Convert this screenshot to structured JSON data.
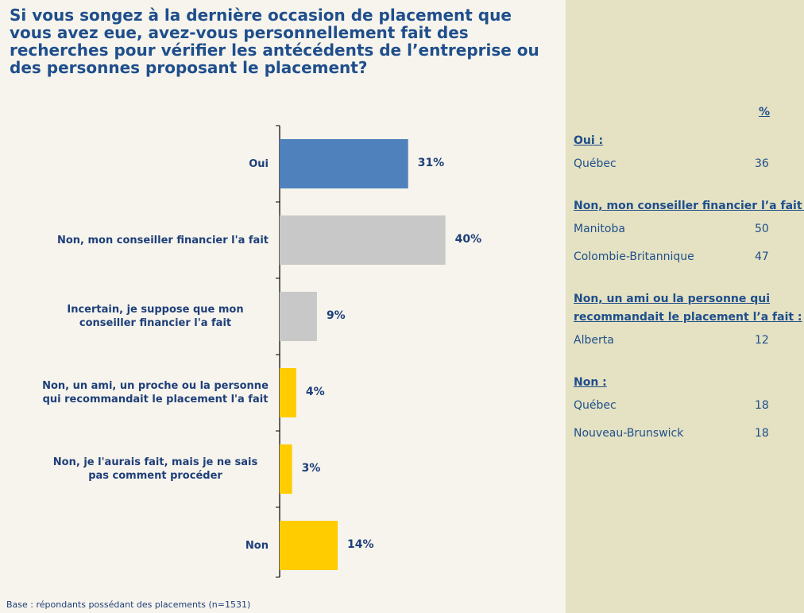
{
  "chart_data": {
    "type": "bar",
    "orientation": "horizontal",
    "title": "Si vous songez à la dernière occasion de placement que vous avez eue, avez-vous personnellement fait des recherches pour vérifier les antécédents de l’entreprise ou des personnes proposant le placement?",
    "categories": [
      "Oui",
      "Non, mon conseiller financier l'a fait",
      "Incertain, je suppose que mon conseiller financier l'a fait",
      "Non, un ami, un proche ou la personne qui recommandait le placement l'a fait",
      "Non, je l'aurais fait, mais je ne sais pas comment procéder",
      "Non"
    ],
    "values": [
      31,
      40,
      9,
      4,
      3,
      14
    ],
    "value_labels": [
      "31%",
      "40%",
      "9%",
      "4%",
      "3%",
      "14%"
    ],
    "colors": [
      "#4f81bd",
      "#c8c8c8",
      "#c8c8c8",
      "#ffcc00",
      "#ffcc00",
      "#ffcc00"
    ],
    "xlim": [
      0,
      60
    ],
    "footnote": "Base : répondants possédant des placements (n=1531)"
  },
  "side_table": {
    "header": "%",
    "groups": [
      {
        "heading": "Oui :",
        "rows": [
          {
            "region": "Québec",
            "value": "36"
          }
        ]
      },
      {
        "heading": "Non, mon conseiller financier l’a fait :",
        "rows": [
          {
            "region": "Manitoba",
            "value": "50"
          },
          {
            "region": "Colombie-Britannique",
            "value": "47"
          }
        ]
      },
      {
        "heading": "Non, un ami ou la personne qui recommandait le placement l’a fait :",
        "rows": [
          {
            "region": "Alberta",
            "value": "12"
          }
        ]
      },
      {
        "heading": "Non :",
        "rows": [
          {
            "region": "Québec",
            "value": "18"
          },
          {
            "region": "Nouveau-Brunswick",
            "value": "18"
          }
        ]
      }
    ]
  }
}
